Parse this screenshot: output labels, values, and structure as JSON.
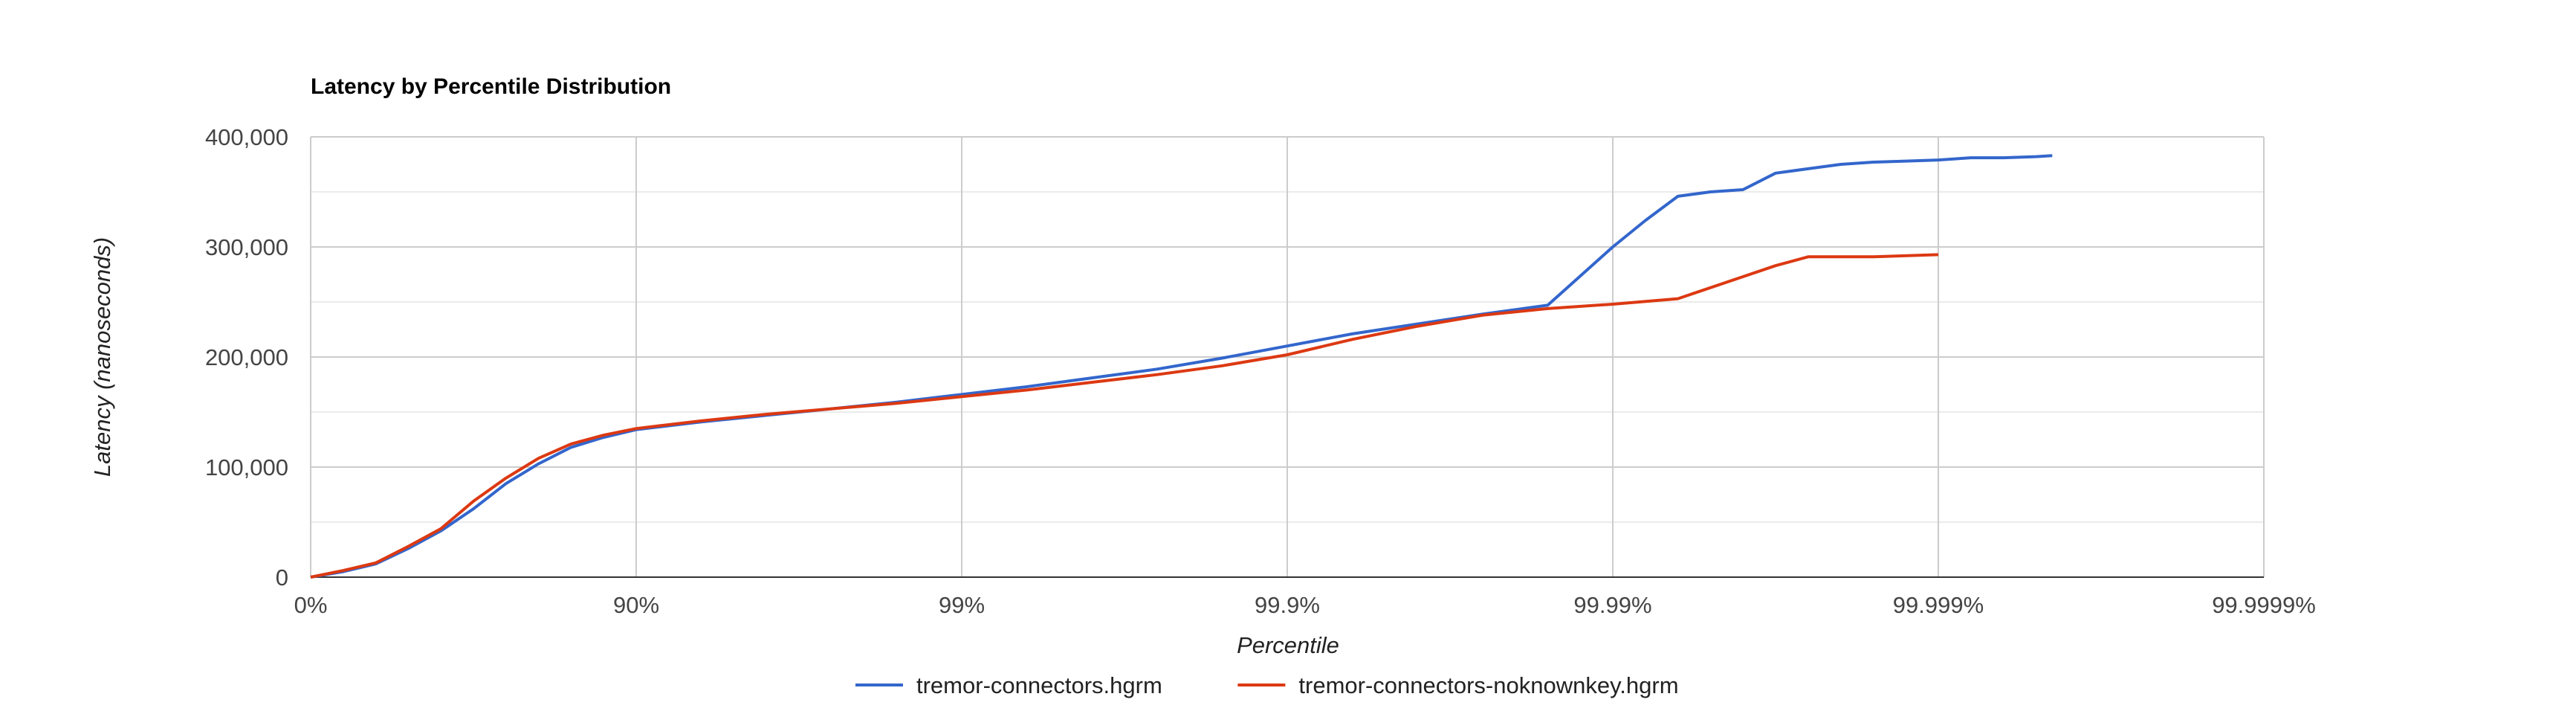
{
  "chart_data": {
    "type": "line",
    "title": "Latency by Percentile Distribution",
    "xlabel": "Percentile",
    "ylabel": "Latency (nanoseconds)",
    "x_scale": "percentile (log of 1/(1-p))",
    "x_ticks": [
      "0%",
      "90%",
      "99%",
      "99.9%",
      "99.99%",
      "99.999%",
      "99.9999%"
    ],
    "y_ticks": [
      "0",
      "100,000",
      "200,000",
      "300,000",
      "400,000"
    ],
    "ylim": [
      0,
      400000
    ],
    "grid": true,
    "legend_position": "bottom",
    "series": [
      {
        "name": "tremor-connectors.hgrm",
        "color": "#3366cc",
        "points": [
          [
            0,
            0
          ],
          [
            0.1,
            5000
          ],
          [
            0.2,
            12000
          ],
          [
            0.3,
            26000
          ],
          [
            0.4,
            42000
          ],
          [
            0.5,
            62000
          ],
          [
            0.6,
            85000
          ],
          [
            0.7,
            103000
          ],
          [
            0.8,
            118000
          ],
          [
            0.9,
            127000
          ],
          [
            1.0,
            134000
          ],
          [
            1.2,
            141000
          ],
          [
            1.4,
            147000
          ],
          [
            1.6,
            153000
          ],
          [
            1.8,
            159000
          ],
          [
            2.0,
            166000
          ],
          [
            2.2,
            173000
          ],
          [
            2.4,
            181000
          ],
          [
            2.6,
            189000
          ],
          [
            2.8,
            199000
          ],
          [
            3.0,
            210000
          ],
          [
            3.2,
            221000
          ],
          [
            3.4,
            230000
          ],
          [
            3.6,
            239000
          ],
          [
            3.8,
            247000
          ],
          [
            4.0,
            300000
          ],
          [
            4.1,
            324000
          ],
          [
            4.2,
            346000
          ],
          [
            4.3,
            350000
          ],
          [
            4.4,
            352000
          ],
          [
            4.5,
            367000
          ],
          [
            4.6,
            371000
          ],
          [
            4.7,
            375000
          ],
          [
            4.8,
            377000
          ],
          [
            4.9,
            378000
          ],
          [
            5.0,
            379000
          ],
          [
            5.1,
            381000
          ],
          [
            5.2,
            381000
          ],
          [
            5.3,
            382000
          ],
          [
            5.35,
            383000
          ]
        ]
      },
      {
        "name": "tremor-connectors-noknownkey.hgrm",
        "color": "#dc3912",
        "points": [
          [
            0,
            0
          ],
          [
            0.1,
            6000
          ],
          [
            0.2,
            13000
          ],
          [
            0.3,
            28000
          ],
          [
            0.4,
            44000
          ],
          [
            0.5,
            69000
          ],
          [
            0.6,
            90000
          ],
          [
            0.7,
            108000
          ],
          [
            0.8,
            121000
          ],
          [
            0.9,
            129000
          ],
          [
            1.0,
            135000
          ],
          [
            1.2,
            142000
          ],
          [
            1.4,
            148000
          ],
          [
            1.6,
            153000
          ],
          [
            1.8,
            158000
          ],
          [
            2.0,
            164000
          ],
          [
            2.2,
            170000
          ],
          [
            2.4,
            177000
          ],
          [
            2.6,
            184000
          ],
          [
            2.8,
            192000
          ],
          [
            3.0,
            202000
          ],
          [
            3.2,
            216000
          ],
          [
            3.4,
            228000
          ],
          [
            3.6,
            238000
          ],
          [
            3.8,
            244000
          ],
          [
            4.0,
            248000
          ],
          [
            4.2,
            253000
          ],
          [
            4.4,
            273000
          ],
          [
            4.5,
            283000
          ],
          [
            4.6,
            291000
          ],
          [
            4.8,
            291000
          ],
          [
            5.0,
            293000
          ]
        ]
      }
    ]
  }
}
